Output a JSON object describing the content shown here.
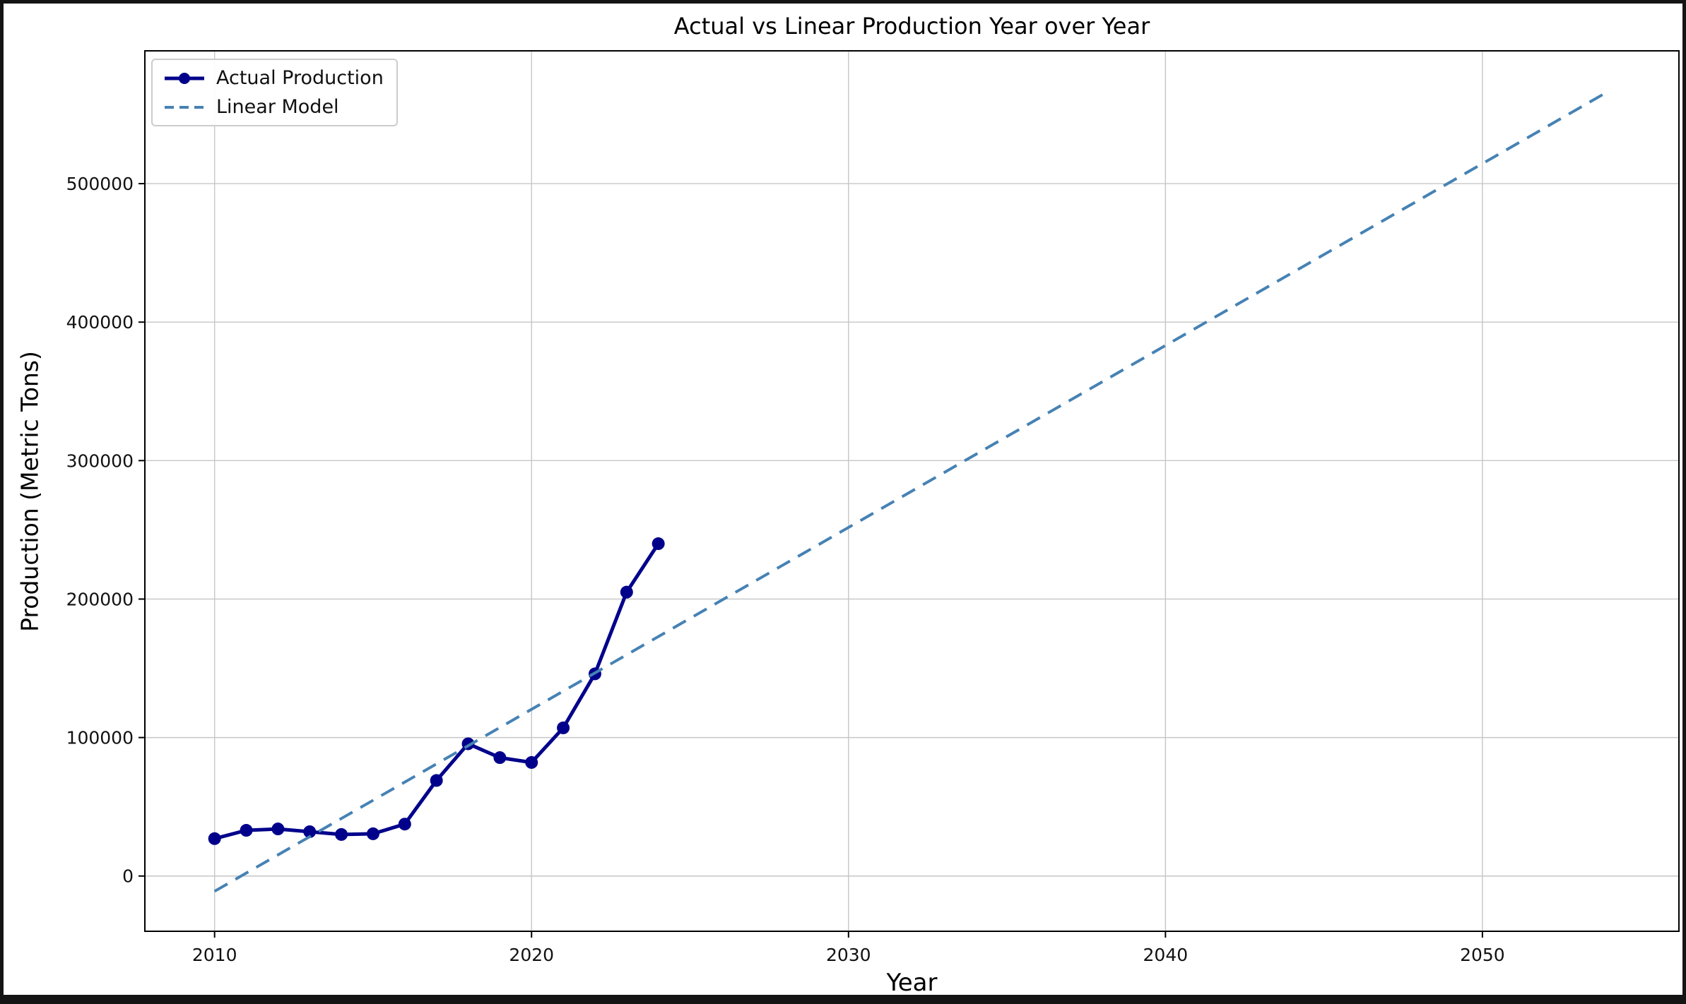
{
  "chart_data": {
    "type": "line",
    "title": "Actual vs Linear Production Year over Year",
    "xlabel": "Year",
    "ylabel": "Production (Metric Tons)",
    "xlim": [
      2007.8,
      2056.2
    ],
    "ylim": [
      -39900,
      595900
    ],
    "xticks": [
      2010,
      2020,
      2030,
      2040,
      2050
    ],
    "yticks": [
      0,
      100000,
      200000,
      300000,
      400000,
      500000
    ],
    "grid": true,
    "legend_position": "upper-left",
    "series": [
      {
        "name": "Actual Production",
        "color": "#00008B",
        "style": "solid",
        "marker": "circle",
        "linewidth": 5,
        "x": [
          2010,
          2011,
          2012,
          2013,
          2014,
          2015,
          2016,
          2017,
          2018,
          2019,
          2020,
          2021,
          2022,
          2023,
          2024
        ],
        "y": [
          27000,
          33000,
          34000,
          32000,
          30000,
          30500,
          37500,
          69000,
          95500,
          85500,
          82000,
          107000,
          146000,
          205000,
          240000
        ]
      },
      {
        "name": "Linear Model",
        "color": "#4682B4",
        "style": "dashed",
        "marker": "none",
        "linewidth": 4,
        "x": [
          2010,
          2054
        ],
        "y": [
          -11000,
          567000
        ]
      }
    ]
  }
}
